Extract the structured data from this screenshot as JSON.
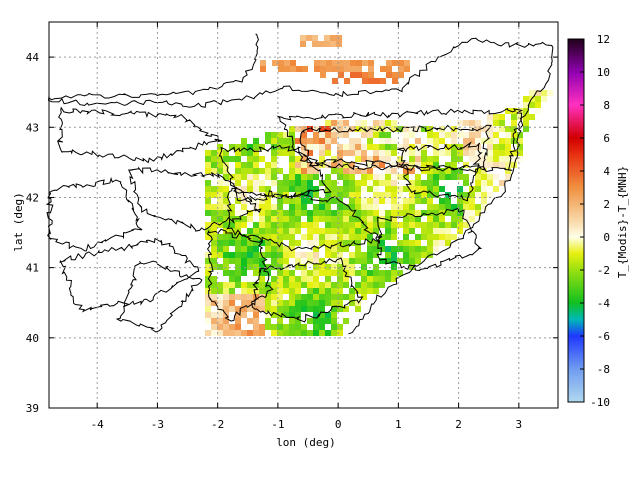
{
  "chart_data": {
    "type": "heatmap",
    "title": "",
    "xlabel": "lon (deg)",
    "ylabel": "lat (deg)",
    "xlim": [
      -4.8,
      3.65
    ],
    "ylim": [
      39,
      44.5
    ],
    "x_ticks": [
      -4,
      -3,
      -2,
      -1,
      0,
      1,
      2,
      3
    ],
    "y_ticks": [
      39,
      40,
      41,
      42,
      43,
      44
    ],
    "grid": true,
    "colorbar": {
      "label": "T_{Modis}-T_{MNH}",
      "min": -10,
      "max": 12,
      "ticks": [
        -10,
        -8,
        -6,
        -4,
        -2,
        0,
        2,
        4,
        6,
        8,
        10,
        12
      ],
      "stops": [
        {
          "value": -10,
          "color": "#b0d8f0"
        },
        {
          "value": -8,
          "color": "#6f9cf0"
        },
        {
          "value": -6,
          "color": "#1f38ff"
        },
        {
          "value": -5,
          "color": "#00b8b8"
        },
        {
          "value": -4,
          "color": "#10c020"
        },
        {
          "value": -2,
          "color": "#9ae010"
        },
        {
          "value": -1,
          "color": "#e8f010"
        },
        {
          "value": 0,
          "color": "#ffffe8"
        },
        {
          "value": 1,
          "color": "#f8d8a8"
        },
        {
          "value": 3,
          "color": "#f09040"
        },
        {
          "value": 5,
          "color": "#e83010"
        },
        {
          "value": 6,
          "color": "#d00000"
        },
        {
          "value": 8,
          "color": "#ff30c0"
        },
        {
          "value": 10,
          "color": "#9000b0"
        },
        {
          "value": 12,
          "color": "#200018"
        }
      ]
    }
  }
}
